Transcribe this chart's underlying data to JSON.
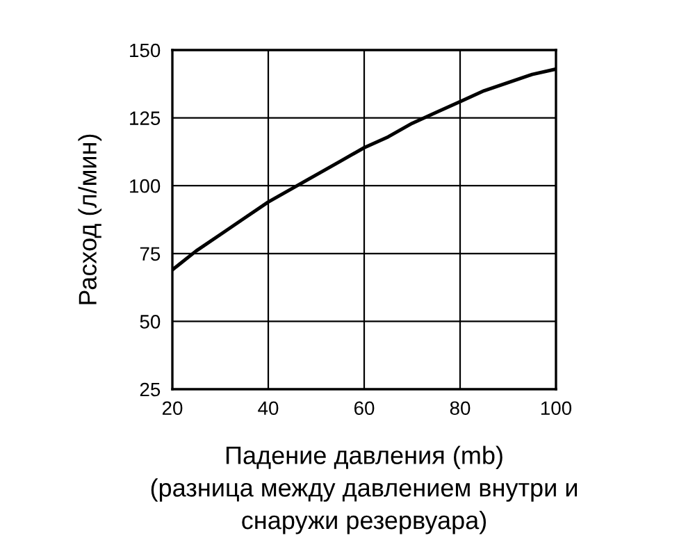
{
  "chart_data": {
    "type": "line",
    "xlabel": "Падение давления (mb)\n(разница между давлением внутри и\nснаружи резервуара)",
    "ylabel": "Расход (л/мин)",
    "series": [
      {
        "color": "#000000",
        "x": [
          20,
          25,
          30,
          35,
          40,
          45,
          50,
          55,
          60,
          65,
          70,
          75,
          80,
          85,
          90,
          95,
          100
        ],
        "values": [
          69,
          76,
          82,
          88,
          94,
          99,
          104,
          109,
          114,
          118,
          123,
          127,
          131,
          135,
          138,
          141,
          143
        ]
      }
    ],
    "xlim": [
      20,
      100
    ],
    "ylim": [
      25,
      150
    ],
    "xticks": [
      20,
      40,
      60,
      80,
      100
    ],
    "yticks": [
      25,
      50,
      75,
      100,
      125,
      150
    ],
    "grid": true,
    "marker": "none",
    "line_style": "solid"
  }
}
